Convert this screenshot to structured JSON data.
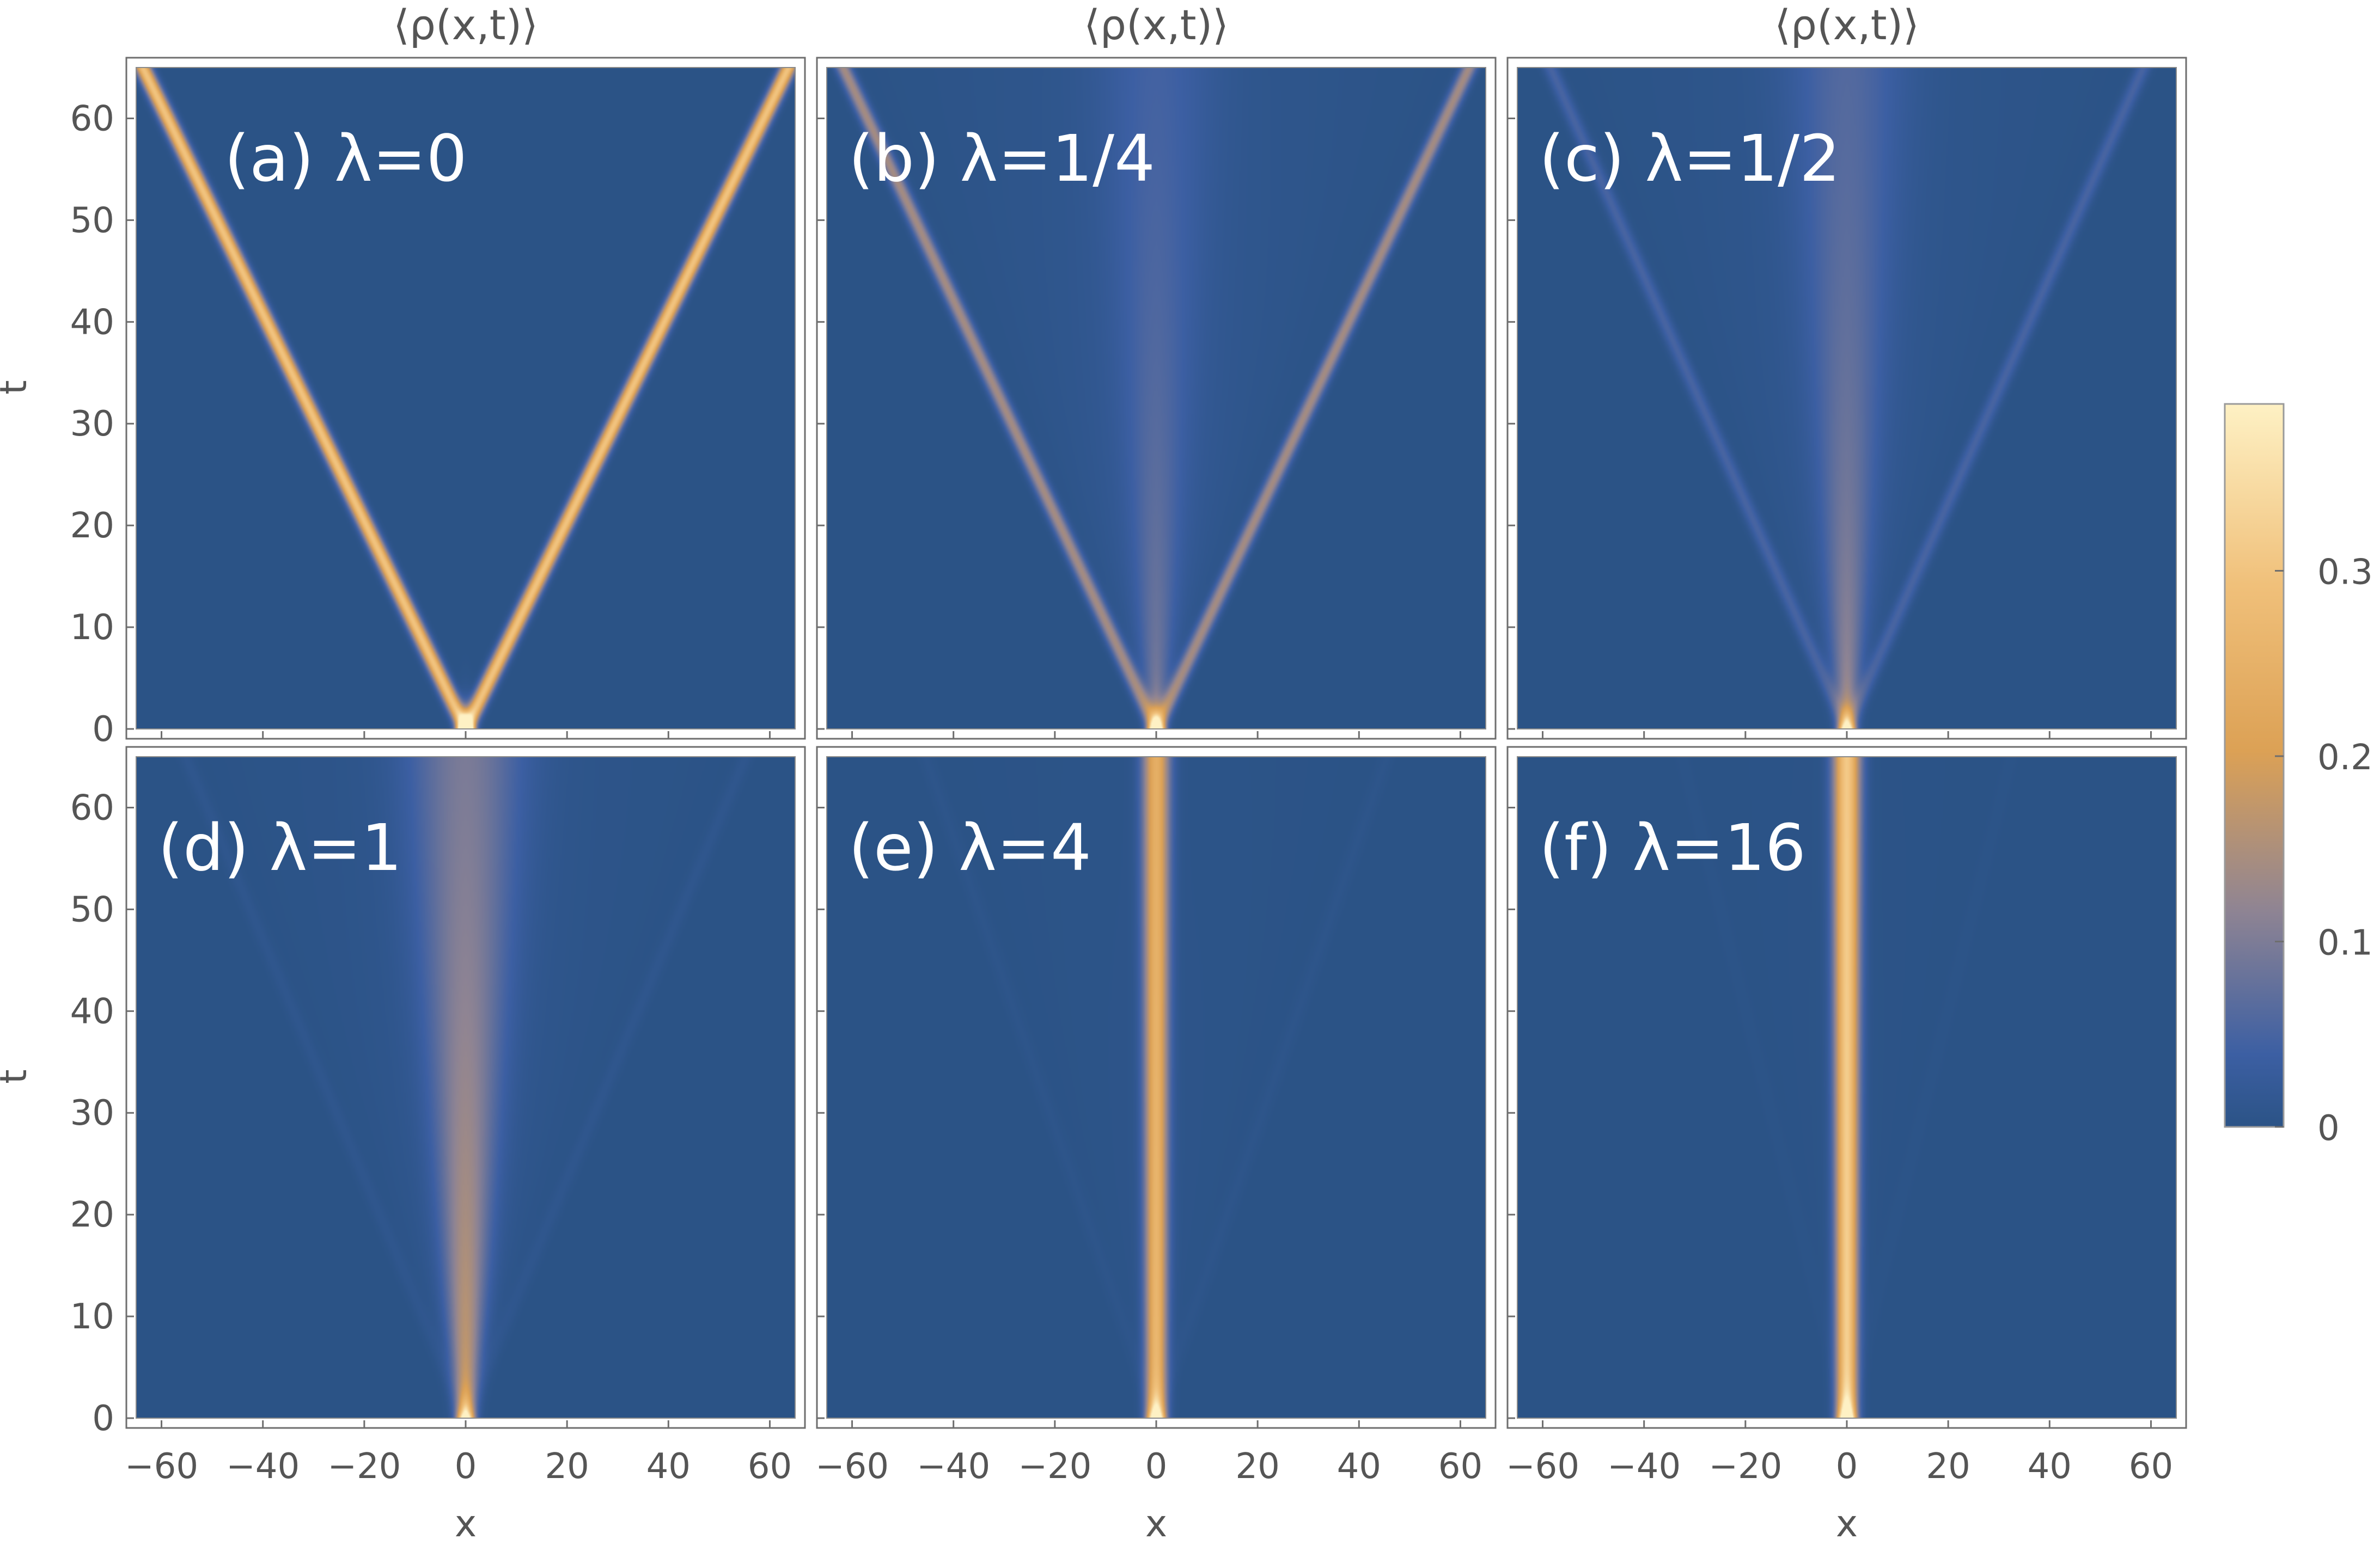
{
  "chart_data": [
    {
      "type": "heatmap",
      "title": "⟨ρ(x,t)⟩",
      "label": "(a) λ=0",
      "lambda": 0,
      "xlabel": "",
      "ylabel": "t",
      "xlim": [
        -65,
        65
      ],
      "ylim": [
        0,
        65
      ],
      "xticks": [
        "−60",
        "−40",
        "−20",
        "0",
        "20",
        "40",
        "60"
      ],
      "yticks": [
        "0",
        "10",
        "20",
        "30",
        "40",
        "50",
        "60"
      ],
      "features": {
        "beam_speed": 0.98,
        "beam_amp": 0.3,
        "center_amp": 0.0,
        "center_decay": 1,
        "cone_amp": 0.0
      }
    },
    {
      "type": "heatmap",
      "title": "⟨ρ(x,t)⟩",
      "label": "(b) λ=1/4",
      "lambda": 0.25,
      "xlabel": "",
      "ylabel": "",
      "xlim": [
        -65,
        65
      ],
      "ylim": [
        0,
        65
      ],
      "xticks": [
        "−60",
        "−40",
        "−20",
        "0",
        "20",
        "40",
        "60"
      ],
      "yticks": [
        "0",
        "10",
        "20",
        "30",
        "40",
        "50",
        "60"
      ],
      "features": {
        "beam_speed": 0.95,
        "beam_amp": 0.14,
        "center_amp": 0.06,
        "center_decay": 40,
        "cone_amp": 0.035
      }
    },
    {
      "type": "heatmap",
      "title": "⟨ρ(x,t)⟩",
      "label": "(c) λ=1/2",
      "lambda": 0.5,
      "xlabel": "",
      "ylabel": "",
      "xlim": [
        -65,
        65
      ],
      "ylim": [
        0,
        65
      ],
      "xticks": [
        "−60",
        "−40",
        "−20",
        "0",
        "20",
        "40",
        "60"
      ],
      "yticks": [
        "0",
        "10",
        "20",
        "30",
        "40",
        "50",
        "60"
      ],
      "features": {
        "beam_speed": 0.9,
        "beam_amp": 0.05,
        "center_amp": 0.1,
        "center_decay": 28,
        "cone_amp": 0.03
      }
    },
    {
      "type": "heatmap",
      "title": "",
      "label": "(d) λ=1",
      "lambda": 1,
      "xlabel": "x",
      "ylabel": "t",
      "xlim": [
        -65,
        65
      ],
      "ylim": [
        0,
        65
      ],
      "xticks": [
        "−60",
        "−40",
        "−20",
        "0",
        "20",
        "40",
        "60"
      ],
      "yticks": [
        "0",
        "10",
        "20",
        "30",
        "40",
        "50",
        "60"
      ],
      "features": {
        "beam_speed": 0.85,
        "beam_amp": 0.01,
        "center_amp": 0.16,
        "center_decay": 40,
        "cone_amp": 0.025
      }
    },
    {
      "type": "heatmap",
      "title": "",
      "label": "(e) λ=4",
      "lambda": 4,
      "xlabel": "x",
      "ylabel": "",
      "xlim": [
        -65,
        65
      ],
      "ylim": [
        0,
        65
      ],
      "xticks": [
        "−60",
        "−40",
        "−20",
        "0",
        "20",
        "40",
        "60"
      ],
      "yticks": [
        "0",
        "10",
        "20",
        "30",
        "40",
        "50",
        "60"
      ],
      "features": {
        "beam_speed": 0.7,
        "beam_amp": 0.006,
        "center_amp": 0.26,
        "center_decay": 400,
        "cone_amp": 0.01
      }
    },
    {
      "type": "heatmap",
      "title": "",
      "label": "(f) λ=16",
      "lambda": 16,
      "xlabel": "x",
      "ylabel": "",
      "xlim": [
        -65,
        65
      ],
      "ylim": [
        0,
        65
      ],
      "xticks": [
        "−60",
        "−40",
        "−20",
        "0",
        "20",
        "40",
        "60"
      ],
      "yticks": [
        "0",
        "10",
        "20",
        "30",
        "40",
        "50",
        "60"
      ],
      "features": {
        "beam_speed": 0.5,
        "beam_amp": 0.003,
        "center_amp": 0.32,
        "center_decay": 1000,
        "cone_amp": 0.005
      }
    }
  ],
  "colorbar": {
    "range": [
      0,
      0.39
    ],
    "ticks": [
      "0",
      "0.1",
      "0.2",
      "0.3"
    ],
    "tick_values": [
      0,
      0.1,
      0.2,
      0.3
    ],
    "colormap": [
      "#2b5386",
      "#3c5fa3",
      "#8f8493",
      "#dca155",
      "#f0c07a",
      "#fef1c4"
    ]
  },
  "colors": {
    "background": "#2b5386",
    "frame": "#6e6e6e",
    "text": "#555555"
  }
}
